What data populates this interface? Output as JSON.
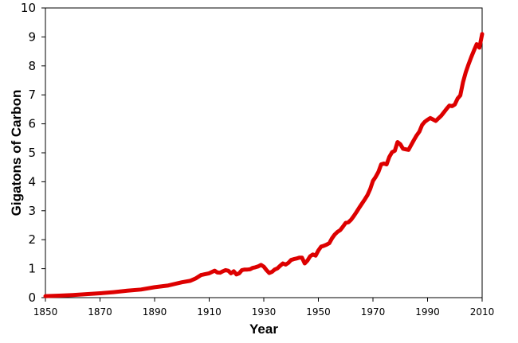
{
  "chart_data": {
    "type": "line",
    "title": "",
    "xlabel": "Year",
    "ylabel": "Gigatons of Carbon",
    "xlim": [
      1850,
      2010
    ],
    "ylim": [
      0,
      10
    ],
    "x_ticks": [
      "1850",
      "1870",
      "1890",
      "1910",
      "1930",
      "1950",
      "1970",
      "1990",
      "2010"
    ],
    "y_ticks": [
      "0",
      "1",
      "2",
      "3",
      "4",
      "5",
      "6",
      "7",
      "8",
      "9",
      "10"
    ],
    "grid": false,
    "legend": "none",
    "line_color": "#dd0000",
    "series": [
      {
        "x": [
          1850,
          1855,
          1860,
          1865,
          1870,
          1875,
          1880,
          1885,
          1890,
          1895,
          1900,
          1903,
          1905,
          1907,
          1910,
          1912,
          1913,
          1914,
          1915,
          1916,
          1917,
          1918,
          1919,
          1920,
          1921,
          1922,
          1923,
          1924,
          1925,
          1926,
          1927,
          1928,
          1929,
          1930,
          1931,
          1932,
          1933,
          1934,
          1935,
          1936,
          1937,
          1938,
          1939,
          1940,
          1941,
          1942,
          1943,
          1944,
          1945,
          1946,
          1947,
          1948,
          1949,
          1950,
          1951,
          1952,
          1953,
          1954,
          1955,
          1956,
          1957,
          1958,
          1959,
          1960,
          1961,
          1962,
          1963,
          1964,
          1965,
          1966,
          1967,
          1968,
          1969,
          1970,
          1971,
          1972,
          1973,
          1974,
          1975,
          1976,
          1977,
          1978,
          1979,
          1980,
          1981,
          1982,
          1983,
          1984,
          1985,
          1986,
          1987,
          1988,
          1989,
          1990,
          1991,
          1992,
          1993,
          1994,
          1995,
          1996,
          1997,
          1998,
          1999,
          2000,
          2001,
          2002,
          2003,
          2004,
          2005,
          2006,
          2007,
          2008,
          2009,
          2010
        ],
        "values": [
          0.05,
          0.07,
          0.09,
          0.12,
          0.15,
          0.19,
          0.24,
          0.28,
          0.36,
          0.42,
          0.53,
          0.58,
          0.66,
          0.78,
          0.84,
          0.93,
          0.87,
          0.86,
          0.91,
          0.95,
          0.93,
          0.84,
          0.91,
          0.8,
          0.84,
          0.95,
          0.97,
          0.97,
          0.98,
          1.03,
          1.05,
          1.08,
          1.13,
          1.07,
          0.95,
          0.85,
          0.89,
          0.97,
          1.01,
          1.1,
          1.18,
          1.14,
          1.2,
          1.3,
          1.33,
          1.35,
          1.38,
          1.38,
          1.18,
          1.28,
          1.43,
          1.49,
          1.45,
          1.63,
          1.76,
          1.79,
          1.83,
          1.88,
          2.05,
          2.18,
          2.27,
          2.33,
          2.45,
          2.58,
          2.6,
          2.69,
          2.82,
          2.96,
          3.11,
          3.25,
          3.39,
          3.54,
          3.75,
          4.03,
          4.17,
          4.34,
          4.6,
          4.63,
          4.6,
          4.86,
          5.02,
          5.07,
          5.37,
          5.3,
          5.14,
          5.12,
          5.1,
          5.27,
          5.44,
          5.6,
          5.73,
          5.96,
          6.07,
          6.14,
          6.2,
          6.15,
          6.1,
          6.19,
          6.28,
          6.4,
          6.52,
          6.63,
          6.61,
          6.67,
          6.87,
          6.98,
          7.44,
          7.78,
          8.05,
          8.3,
          8.53,
          8.75,
          8.63,
          9.1
        ]
      }
    ]
  }
}
